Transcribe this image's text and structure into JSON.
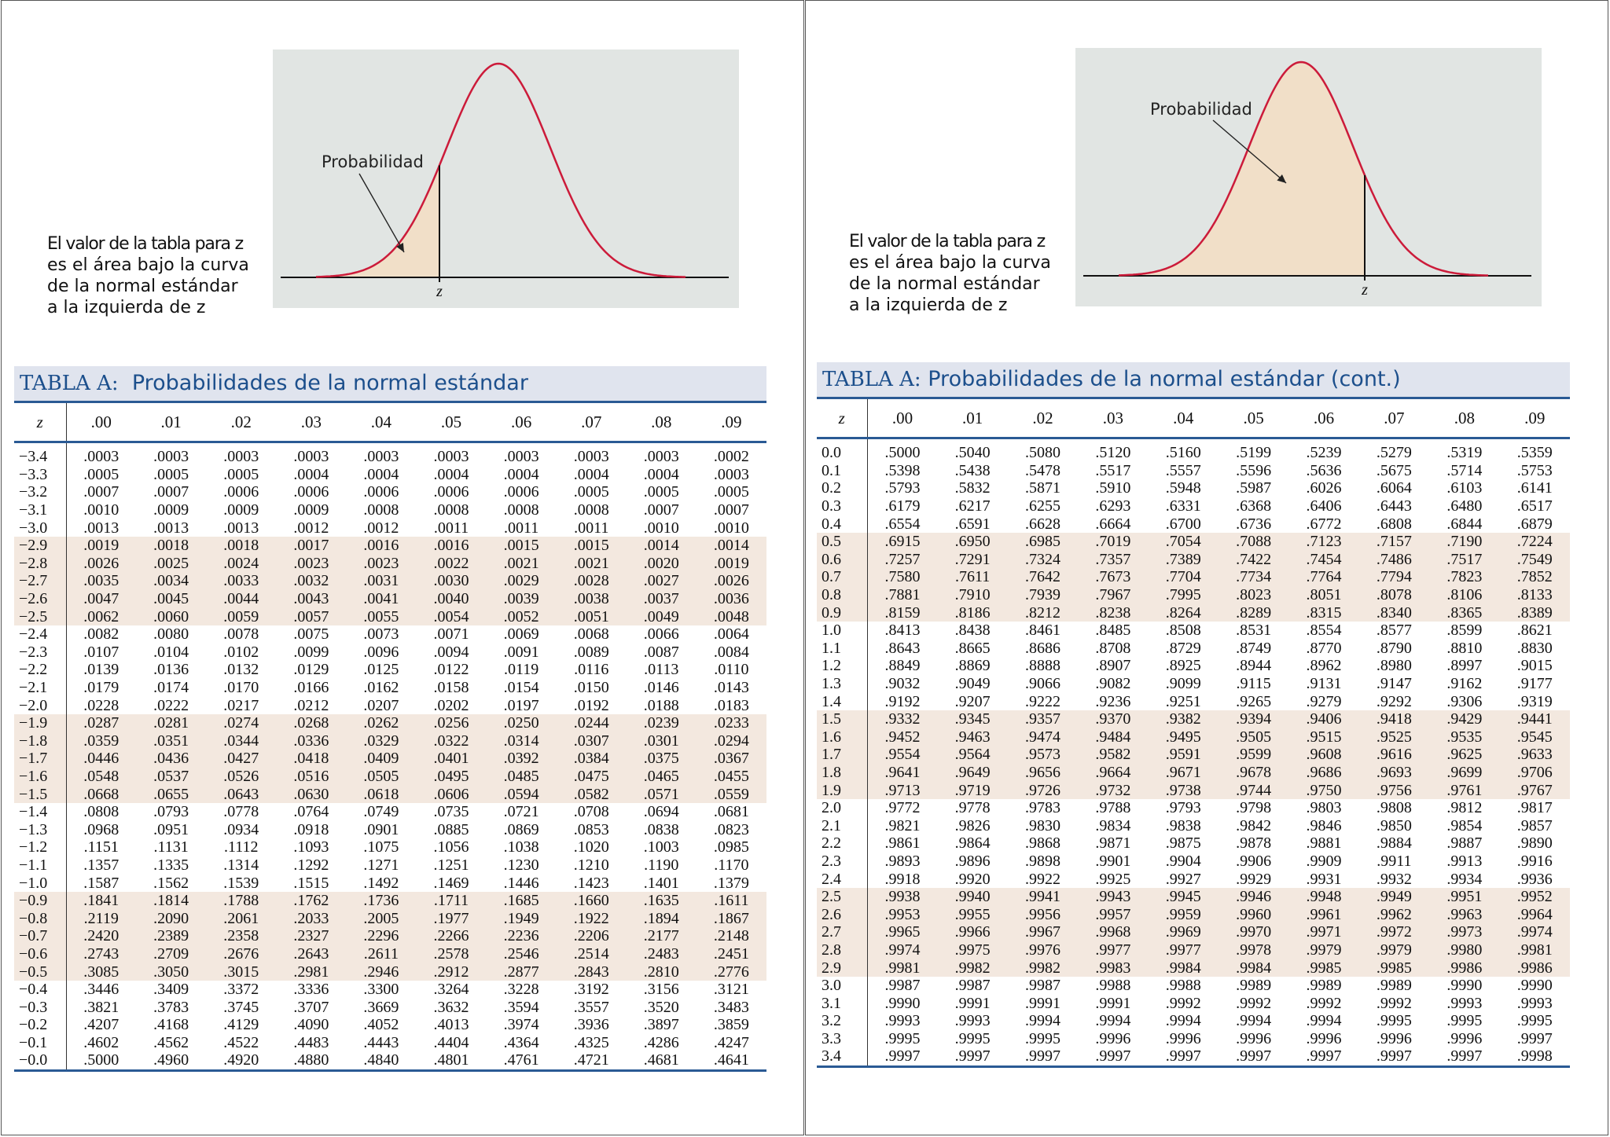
{
  "colors": {
    "curve": "#cc1b3a",
    "shade_area": "#f1dfc8",
    "figure_bg": "#e1e5e3",
    "title_text": "#1c4f8c",
    "title_bg": "#e0e4ee",
    "rule": "#2a5a94",
    "row_shade": "#f3e8df"
  },
  "left": {
    "figure": {
      "prob_label": "Probabilidad",
      "z_label": "z",
      "shaded_side": "left-tail"
    },
    "caption": [
      "El valor de la tabla para z",
      "es el área bajo la curva",
      "de la normal estándar",
      "a la izquierda de z"
    ],
    "table_title_prefix": "TABLA   A:",
    "table_title": "Probabilidades de la normal estándar",
    "z_header": "z",
    "columns": [
      ".00",
      ".01",
      ".02",
      ".03",
      ".04",
      ".05",
      ".06",
      ".07",
      ".08",
      ".09"
    ],
    "rows": [
      {
        "z": "−3.4",
        "v": [
          ".0003",
          ".0003",
          ".0003",
          ".0003",
          ".0003",
          ".0003",
          ".0003",
          ".0003",
          ".0003",
          ".0002"
        ]
      },
      {
        "z": "−3.3",
        "v": [
          ".0005",
          ".0005",
          ".0005",
          ".0004",
          ".0004",
          ".0004",
          ".0004",
          ".0004",
          ".0004",
          ".0003"
        ]
      },
      {
        "z": "−3.2",
        "v": [
          ".0007",
          ".0007",
          ".0006",
          ".0006",
          ".0006",
          ".0006",
          ".0006",
          ".0005",
          ".0005",
          ".0005"
        ]
      },
      {
        "z": "−3.1",
        "v": [
          ".0010",
          ".0009",
          ".0009",
          ".0009",
          ".0008",
          ".0008",
          ".0008",
          ".0008",
          ".0007",
          ".0007"
        ]
      },
      {
        "z": "−3.0",
        "v": [
          ".0013",
          ".0013",
          ".0013",
          ".0012",
          ".0012",
          ".0011",
          ".0011",
          ".0011",
          ".0010",
          ".0010"
        ]
      },
      {
        "z": "−2.9",
        "v": [
          ".0019",
          ".0018",
          ".0018",
          ".0017",
          ".0016",
          ".0016",
          ".0015",
          ".0015",
          ".0014",
          ".0014"
        ]
      },
      {
        "z": "−2.8",
        "v": [
          ".0026",
          ".0025",
          ".0024",
          ".0023",
          ".0023",
          ".0022",
          ".0021",
          ".0021",
          ".0020",
          ".0019"
        ]
      },
      {
        "z": "−2.7",
        "v": [
          ".0035",
          ".0034",
          ".0033",
          ".0032",
          ".0031",
          ".0030",
          ".0029",
          ".0028",
          ".0027",
          ".0026"
        ]
      },
      {
        "z": "−2.6",
        "v": [
          ".0047",
          ".0045",
          ".0044",
          ".0043",
          ".0041",
          ".0040",
          ".0039",
          ".0038",
          ".0037",
          ".0036"
        ]
      },
      {
        "z": "−2.5",
        "v": [
          ".0062",
          ".0060",
          ".0059",
          ".0057",
          ".0055",
          ".0054",
          ".0052",
          ".0051",
          ".0049",
          ".0048"
        ]
      },
      {
        "z": "−2.4",
        "v": [
          ".0082",
          ".0080",
          ".0078",
          ".0075",
          ".0073",
          ".0071",
          ".0069",
          ".0068",
          ".0066",
          ".0064"
        ]
      },
      {
        "z": "−2.3",
        "v": [
          ".0107",
          ".0104",
          ".0102",
          ".0099",
          ".0096",
          ".0094",
          ".0091",
          ".0089",
          ".0087",
          ".0084"
        ]
      },
      {
        "z": "−2.2",
        "v": [
          ".0139",
          ".0136",
          ".0132",
          ".0129",
          ".0125",
          ".0122",
          ".0119",
          ".0116",
          ".0113",
          ".0110"
        ]
      },
      {
        "z": "−2.1",
        "v": [
          ".0179",
          ".0174",
          ".0170",
          ".0166",
          ".0162",
          ".0158",
          ".0154",
          ".0150",
          ".0146",
          ".0143"
        ]
      },
      {
        "z": "−2.0",
        "v": [
          ".0228",
          ".0222",
          ".0217",
          ".0212",
          ".0207",
          ".0202",
          ".0197",
          ".0192",
          ".0188",
          ".0183"
        ]
      },
      {
        "z": "−1.9",
        "v": [
          ".0287",
          ".0281",
          ".0274",
          ".0268",
          ".0262",
          ".0256",
          ".0250",
          ".0244",
          ".0239",
          ".0233"
        ]
      },
      {
        "z": "−1.8",
        "v": [
          ".0359",
          ".0351",
          ".0344",
          ".0336",
          ".0329",
          ".0322",
          ".0314",
          ".0307",
          ".0301",
          ".0294"
        ]
      },
      {
        "z": "−1.7",
        "v": [
          ".0446",
          ".0436",
          ".0427",
          ".0418",
          ".0409",
          ".0401",
          ".0392",
          ".0384",
          ".0375",
          ".0367"
        ]
      },
      {
        "z": "−1.6",
        "v": [
          ".0548",
          ".0537",
          ".0526",
          ".0516",
          ".0505",
          ".0495",
          ".0485",
          ".0475",
          ".0465",
          ".0455"
        ]
      },
      {
        "z": "−1.5",
        "v": [
          ".0668",
          ".0655",
          ".0643",
          ".0630",
          ".0618",
          ".0606",
          ".0594",
          ".0582",
          ".0571",
          ".0559"
        ]
      },
      {
        "z": "−1.4",
        "v": [
          ".0808",
          ".0793",
          ".0778",
          ".0764",
          ".0749",
          ".0735",
          ".0721",
          ".0708",
          ".0694",
          ".0681"
        ]
      },
      {
        "z": "−1.3",
        "v": [
          ".0968",
          ".0951",
          ".0934",
          ".0918",
          ".0901",
          ".0885",
          ".0869",
          ".0853",
          ".0838",
          ".0823"
        ]
      },
      {
        "z": "−1.2",
        "v": [
          ".1151",
          ".1131",
          ".1112",
          ".1093",
          ".1075",
          ".1056",
          ".1038",
          ".1020",
          ".1003",
          ".0985"
        ]
      },
      {
        "z": "−1.1",
        "v": [
          ".1357",
          ".1335",
          ".1314",
          ".1292",
          ".1271",
          ".1251",
          ".1230",
          ".1210",
          ".1190",
          ".1170"
        ]
      },
      {
        "z": "−1.0",
        "v": [
          ".1587",
          ".1562",
          ".1539",
          ".1515",
          ".1492",
          ".1469",
          ".1446",
          ".1423",
          ".1401",
          ".1379"
        ]
      },
      {
        "z": "−0.9",
        "v": [
          ".1841",
          ".1814",
          ".1788",
          ".1762",
          ".1736",
          ".1711",
          ".1685",
          ".1660",
          ".1635",
          ".1611"
        ]
      },
      {
        "z": "−0.8",
        "v": [
          ".2119",
          ".2090",
          ".2061",
          ".2033",
          ".2005",
          ".1977",
          ".1949",
          ".1922",
          ".1894",
          ".1867"
        ]
      },
      {
        "z": "−0.7",
        "v": [
          ".2420",
          ".2389",
          ".2358",
          ".2327",
          ".2296",
          ".2266",
          ".2236",
          ".2206",
          ".2177",
          ".2148"
        ]
      },
      {
        "z": "−0.6",
        "v": [
          ".2743",
          ".2709",
          ".2676",
          ".2643",
          ".2611",
          ".2578",
          ".2546",
          ".2514",
          ".2483",
          ".2451"
        ]
      },
      {
        "z": "−0.5",
        "v": [
          ".3085",
          ".3050",
          ".3015",
          ".2981",
          ".2946",
          ".2912",
          ".2877",
          ".2843",
          ".2810",
          ".2776"
        ]
      },
      {
        "z": "−0.4",
        "v": [
          ".3446",
          ".3409",
          ".3372",
          ".3336",
          ".3300",
          ".3264",
          ".3228",
          ".3192",
          ".3156",
          ".3121"
        ]
      },
      {
        "z": "−0.3",
        "v": [
          ".3821",
          ".3783",
          ".3745",
          ".3707",
          ".3669",
          ".3632",
          ".3594",
          ".3557",
          ".3520",
          ".3483"
        ]
      },
      {
        "z": "−0.2",
        "v": [
          ".4207",
          ".4168",
          ".4129",
          ".4090",
          ".4052",
          ".4013",
          ".3974",
          ".3936",
          ".3897",
          ".3859"
        ]
      },
      {
        "z": "−0.1",
        "v": [
          ".4602",
          ".4562",
          ".4522",
          ".4483",
          ".4443",
          ".4404",
          ".4364",
          ".4325",
          ".4286",
          ".4247"
        ]
      },
      {
        "z": "−0.0",
        "v": [
          ".5000",
          ".4960",
          ".4920",
          ".4880",
          ".4840",
          ".4801",
          ".4761",
          ".4721",
          ".4681",
          ".4641"
        ]
      }
    ]
  },
  "right": {
    "figure": {
      "prob_label": "Probabilidad",
      "z_label": "z",
      "shaded_side": "left-of-z-positive"
    },
    "caption": [
      "El valor de la tabla para z",
      "es  el área bajo la curva",
      "de la normal estándar",
      "a  la    izquierda    de    z"
    ],
    "table_title_prefix": "TABLA A:",
    "table_title": "Probabilidades  de  la  normal  estándar  (cont.)",
    "z_header": "z",
    "columns": [
      ".00",
      ".01",
      ".02",
      ".03",
      ".04",
      ".05",
      ".06",
      ".07",
      ".08",
      ".09"
    ],
    "rows": [
      {
        "z": "0.0",
        "v": [
          ".5000",
          ".5040",
          ".5080",
          ".5120",
          ".5160",
          ".5199",
          ".5239",
          ".5279",
          ".5319",
          ".5359"
        ]
      },
      {
        "z": "0.1",
        "v": [
          ".5398",
          ".5438",
          ".5478",
          ".5517",
          ".5557",
          ".5596",
          ".5636",
          ".5675",
          ".5714",
          ".5753"
        ]
      },
      {
        "z": "0.2",
        "v": [
          ".5793",
          ".5832",
          ".5871",
          ".5910",
          ".5948",
          ".5987",
          ".6026",
          ".6064",
          ".6103",
          ".6141"
        ]
      },
      {
        "z": "0.3",
        "v": [
          ".6179",
          ".6217",
          ".6255",
          ".6293",
          ".6331",
          ".6368",
          ".6406",
          ".6443",
          ".6480",
          ".6517"
        ]
      },
      {
        "z": "0.4",
        "v": [
          ".6554",
          ".6591",
          ".6628",
          ".6664",
          ".6700",
          ".6736",
          ".6772",
          ".6808",
          ".6844",
          ".6879"
        ]
      },
      {
        "z": "0.5",
        "v": [
          ".6915",
          ".6950",
          ".6985",
          ".7019",
          ".7054",
          ".7088",
          ".7123",
          ".7157",
          ".7190",
          ".7224"
        ]
      },
      {
        "z": "0.6",
        "v": [
          ".7257",
          ".7291",
          ".7324",
          ".7357",
          ".7389",
          ".7422",
          ".7454",
          ".7486",
          ".7517",
          ".7549"
        ]
      },
      {
        "z": "0.7",
        "v": [
          ".7580",
          ".7611",
          ".7642",
          ".7673",
          ".7704",
          ".7734",
          ".7764",
          ".7794",
          ".7823",
          ".7852"
        ]
      },
      {
        "z": "0.8",
        "v": [
          ".7881",
          ".7910",
          ".7939",
          ".7967",
          ".7995",
          ".8023",
          ".8051",
          ".8078",
          ".8106",
          ".8133"
        ]
      },
      {
        "z": "0.9",
        "v": [
          ".8159",
          ".8186",
          ".8212",
          ".8238",
          ".8264",
          ".8289",
          ".8315",
          ".8340",
          ".8365",
          ".8389"
        ]
      },
      {
        "z": "1.0",
        "v": [
          ".8413",
          ".8438",
          ".8461",
          ".8485",
          ".8508",
          ".8531",
          ".8554",
          ".8577",
          ".8599",
          ".8621"
        ]
      },
      {
        "z": "1.1",
        "v": [
          ".8643",
          ".8665",
          ".8686",
          ".8708",
          ".8729",
          ".8749",
          ".8770",
          ".8790",
          ".8810",
          ".8830"
        ]
      },
      {
        "z": "1.2",
        "v": [
          ".8849",
          ".8869",
          ".8888",
          ".8907",
          ".8925",
          ".8944",
          ".8962",
          ".8980",
          ".8997",
          ".9015"
        ]
      },
      {
        "z": "1.3",
        "v": [
          ".9032",
          ".9049",
          ".9066",
          ".9082",
          ".9099",
          ".9115",
          ".9131",
          ".9147",
          ".9162",
          ".9177"
        ]
      },
      {
        "z": "1.4",
        "v": [
          ".9192",
          ".9207",
          ".9222",
          ".9236",
          ".9251",
          ".9265",
          ".9279",
          ".9292",
          ".9306",
          ".9319"
        ]
      },
      {
        "z": "1.5",
        "v": [
          ".9332",
          ".9345",
          ".9357",
          ".9370",
          ".9382",
          ".9394",
          ".9406",
          ".9418",
          ".9429",
          ".9441"
        ]
      },
      {
        "z": "1.6",
        "v": [
          ".9452",
          ".9463",
          ".9474",
          ".9484",
          ".9495",
          ".9505",
          ".9515",
          ".9525",
          ".9535",
          ".9545"
        ]
      },
      {
        "z": "1.7",
        "v": [
          ".9554",
          ".9564",
          ".9573",
          ".9582",
          ".9591",
          ".9599",
          ".9608",
          ".9616",
          ".9625",
          ".9633"
        ]
      },
      {
        "z": "1.8",
        "v": [
          ".9641",
          ".9649",
          ".9656",
          ".9664",
          ".9671",
          ".9678",
          ".9686",
          ".9693",
          ".9699",
          ".9706"
        ]
      },
      {
        "z": "1.9",
        "v": [
          ".9713",
          ".9719",
          ".9726",
          ".9732",
          ".9738",
          ".9744",
          ".9750",
          ".9756",
          ".9761",
          ".9767"
        ]
      },
      {
        "z": "2.0",
        "v": [
          ".9772",
          ".9778",
          ".9783",
          ".9788",
          ".9793",
          ".9798",
          ".9803",
          ".9808",
          ".9812",
          ".9817"
        ]
      },
      {
        "z": "2.1",
        "v": [
          ".9821",
          ".9826",
          ".9830",
          ".9834",
          ".9838",
          ".9842",
          ".9846",
          ".9850",
          ".9854",
          ".9857"
        ]
      },
      {
        "z": "2.2",
        "v": [
          ".9861",
          ".9864",
          ".9868",
          ".9871",
          ".9875",
          ".9878",
          ".9881",
          ".9884",
          ".9887",
          ".9890"
        ]
      },
      {
        "z": "2.3",
        "v": [
          ".9893",
          ".9896",
          ".9898",
          ".9901",
          ".9904",
          ".9906",
          ".9909",
          ".9911",
          ".9913",
          ".9916"
        ]
      },
      {
        "z": "2.4",
        "v": [
          ".9918",
          ".9920",
          ".9922",
          ".9925",
          ".9927",
          ".9929",
          ".9931",
          ".9932",
          ".9934",
          ".9936"
        ]
      },
      {
        "z": "2.5",
        "v": [
          ".9938",
          ".9940",
          ".9941",
          ".9943",
          ".9945",
          ".9946",
          ".9948",
          ".9949",
          ".9951",
          ".9952"
        ]
      },
      {
        "z": "2.6",
        "v": [
          ".9953",
          ".9955",
          ".9956",
          ".9957",
          ".9959",
          ".9960",
          ".9961",
          ".9962",
          ".9963",
          ".9964"
        ]
      },
      {
        "z": "2.7",
        "v": [
          ".9965",
          ".9966",
          ".9967",
          ".9968",
          ".9969",
          ".9970",
          ".9971",
          ".9972",
          ".9973",
          ".9974"
        ]
      },
      {
        "z": "2.8",
        "v": [
          ".9974",
          ".9975",
          ".9976",
          ".9977",
          ".9977",
          ".9978",
          ".9979",
          ".9979",
          ".9980",
          ".9981"
        ]
      },
      {
        "z": "2.9",
        "v": [
          ".9981",
          ".9982",
          ".9982",
          ".9983",
          ".9984",
          ".9984",
          ".9985",
          ".9985",
          ".9986",
          ".9986"
        ]
      },
      {
        "z": "3.0",
        "v": [
          ".9987",
          ".9987",
          ".9987",
          ".9988",
          ".9988",
          ".9989",
          ".9989",
          ".9989",
          ".9990",
          ".9990"
        ]
      },
      {
        "z": "3.1",
        "v": [
          ".9990",
          ".9991",
          ".9991",
          ".9991",
          ".9992",
          ".9992",
          ".9992",
          ".9992",
          ".9993",
          ".9993"
        ]
      },
      {
        "z": "3.2",
        "v": [
          ".9993",
          ".9993",
          ".9994",
          ".9994",
          ".9994",
          ".9994",
          ".9994",
          ".9995",
          ".9995",
          ".9995"
        ]
      },
      {
        "z": "3.3",
        "v": [
          ".9995",
          ".9995",
          ".9995",
          ".9996",
          ".9996",
          ".9996",
          ".9996",
          ".9996",
          ".9996",
          ".9997"
        ]
      },
      {
        "z": "3.4",
        "v": [
          ".9997",
          ".9997",
          ".9997",
          ".9997",
          ".9997",
          ".9997",
          ".9997",
          ".9997",
          ".9997",
          ".9998"
        ]
      }
    ]
  }
}
